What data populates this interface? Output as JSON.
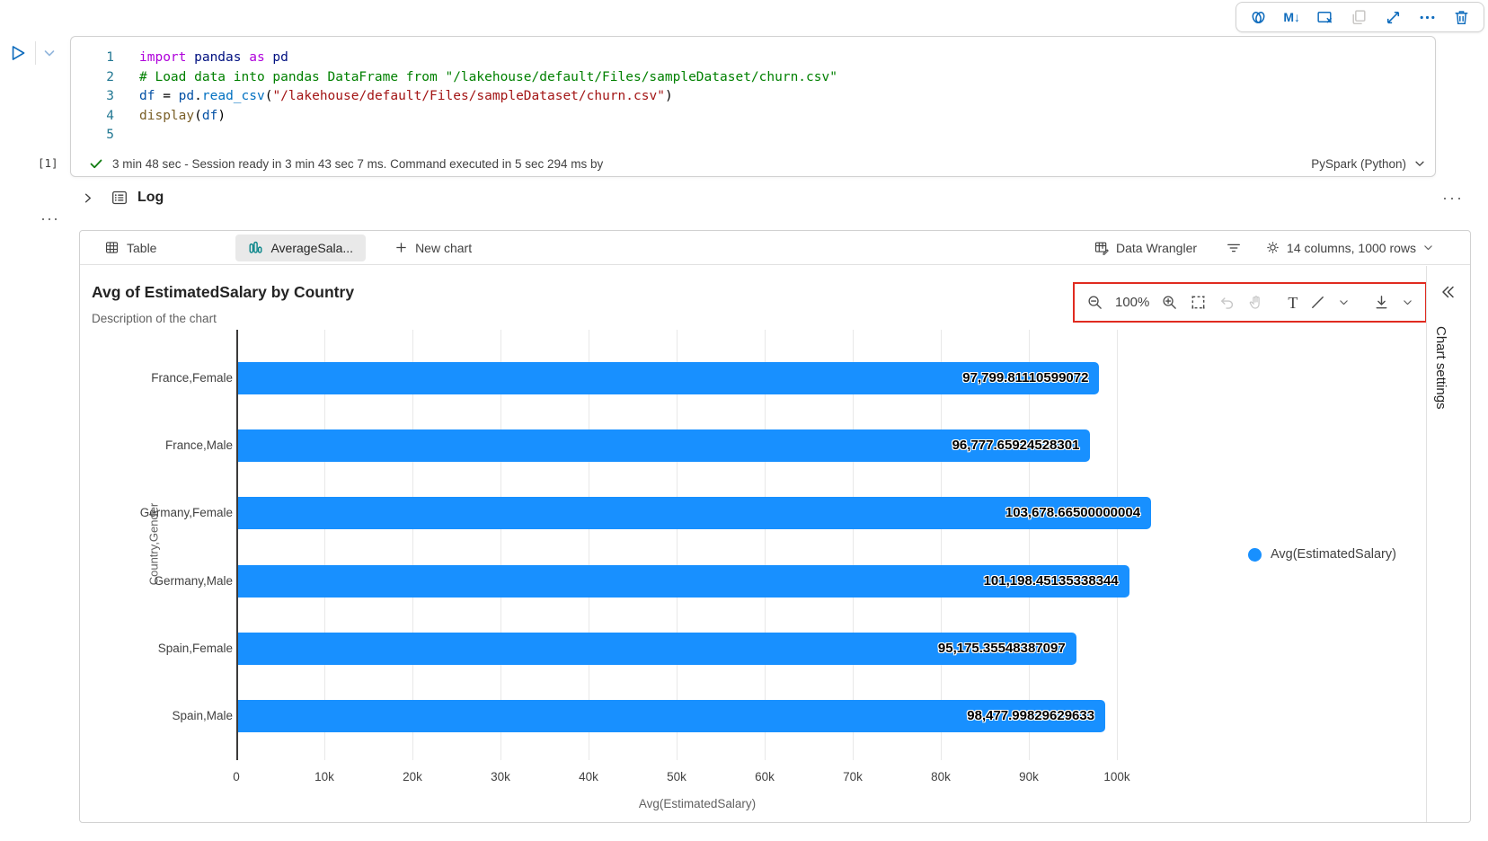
{
  "cell_toolbar": {
    "icons": [
      "copilot",
      "markdown-convert",
      "clear-output",
      "copy",
      "expand",
      "more",
      "delete"
    ],
    "markdown_glyph": "M↓",
    "more_glyph": "···",
    "accent_color": "#0f6cbd"
  },
  "code_cell": {
    "execution_index": "[1]",
    "status_message": "3 min 48 sec - Session ready in 3 min 43 sec 7 ms. Command executed in 5 sec 294 ms by",
    "kernel": "PySpark (Python)",
    "lines": [
      {
        "num": "1",
        "tokens": [
          [
            "import",
            "kw"
          ],
          [
            " pandas",
            "mod"
          ],
          [
            " as",
            "kw"
          ],
          [
            " pd",
            "mod"
          ]
        ]
      },
      {
        "num": "2",
        "tokens": [
          [
            "# Load data into pandas DataFrame from \"/lakehouse/default/Files/sampleDataset/churn.csv\"",
            "com"
          ]
        ]
      },
      {
        "num": "3",
        "tokens": [
          [
            "df",
            "var"
          ],
          [
            " = ",
            "op"
          ],
          [
            "pd",
            "var"
          ],
          [
            ".",
            "op"
          ],
          [
            "read_csv",
            "meth"
          ],
          [
            "(",
            "op"
          ],
          [
            "\"/lakehouse/default/Files/sampleDataset/churn.csv\"",
            "str"
          ],
          [
            ")",
            "op"
          ]
        ]
      },
      {
        "num": "4",
        "tokens": [
          [
            "display",
            "fn"
          ],
          [
            "(",
            "op"
          ],
          [
            "df",
            "var"
          ],
          [
            ")",
            "op"
          ]
        ]
      },
      {
        "num": "5",
        "tokens": []
      }
    ]
  },
  "log": {
    "label": "Log",
    "more": "···",
    "outer_more": "···"
  },
  "output_tabs": {
    "table": "Table",
    "chart": "AverageSala...",
    "new_chart": "New chart",
    "data_wrangler": "Data Wrangler",
    "columns_info": "14 columns, 1000 rows"
  },
  "chart_toolbar": {
    "zoom_level": "100%",
    "text_tool": "T"
  },
  "chart_settings": {
    "title": "Chart settings"
  },
  "chart_data": {
    "type": "bar",
    "orientation": "horizontal",
    "title": "Avg of EstimatedSalary by Country",
    "subtitle": "Description of the chart",
    "categories": [
      "France,Female",
      "France,Male",
      "Germany,Female",
      "Germany,Male",
      "Spain,Female",
      "Spain,Male"
    ],
    "values": [
      97799.81110599072,
      96777.65924528301,
      103678.66500000004,
      101198.45135338344,
      95175.35548387097,
      98477.99829629633
    ],
    "value_labels": [
      "97,799.81110599072",
      "96,777.65924528301",
      "103,678.66500000004",
      "101,198.45135338344",
      "95,175.35548387097",
      "98,477.99829629633"
    ],
    "xlabel": "Avg(EstimatedSalary)",
    "ylabel": "Country,Gender",
    "x_ticks": [
      "0",
      "10k",
      "20k",
      "30k",
      "40k",
      "50k",
      "60k",
      "70k",
      "80k",
      "90k",
      "100k"
    ],
    "xlim": [
      0,
      100000
    ],
    "grid": true,
    "bar_color": "#1890ff",
    "legend_position": "right",
    "legend": [
      {
        "label": "Avg(EstimatedSalary)",
        "color": "#1890ff"
      }
    ]
  }
}
